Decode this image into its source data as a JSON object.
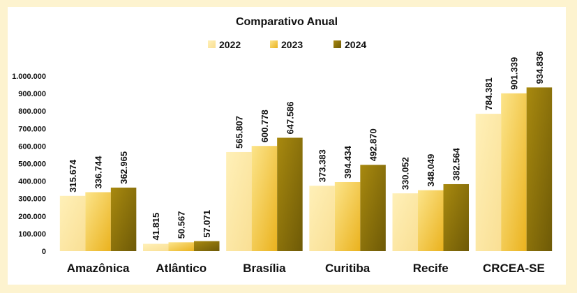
{
  "chart_data": {
    "type": "bar",
    "title": "Comparativo Anual",
    "categories": [
      "Amazônica",
      "Atlântico",
      "Brasília",
      "Curitiba",
      "Recife",
      "CRCEA-SE"
    ],
    "series": [
      {
        "name": "2022",
        "values": [
          315674,
          41815,
          565807,
          373383,
          330052,
          784381
        ],
        "labels": [
          "315.674",
          "41.815",
          "565.807",
          "373.383",
          "330.052",
          "784.381"
        ]
      },
      {
        "name": "2023",
        "values": [
          336744,
          50567,
          600778,
          394434,
          348049,
          901339
        ],
        "labels": [
          "336.744",
          "50.567",
          "600.778",
          "394.434",
          "348.049",
          "901.339"
        ]
      },
      {
        "name": "2024",
        "values": [
          362965,
          57071,
          647586,
          492870,
          382564,
          934836
        ],
        "labels": [
          "362.965",
          "57.071",
          "647.586",
          "492.870",
          "382.564",
          "934.836"
        ]
      }
    ],
    "ylim": [
      0,
      1000000
    ],
    "yticks": [
      0,
      100000,
      200000,
      300000,
      400000,
      500000,
      600000,
      700000,
      800000,
      900000,
      1000000
    ],
    "ytick_labels": [
      "0",
      "100.000",
      "200.000",
      "300.000",
      "400.000",
      "500.000",
      "600.000",
      "700.000",
      "800.000",
      "900.000",
      "1.000.000"
    ],
    "xlabel": "",
    "ylabel": "",
    "grid": false,
    "legend": "top-center",
    "colors": {
      "2022": [
        "#fff0b8",
        "#f9df94"
      ],
      "2023": [
        "#fce48a",
        "#eab21e"
      ],
      "2024": [
        "#a8890f",
        "#6e5a07"
      ]
    }
  }
}
